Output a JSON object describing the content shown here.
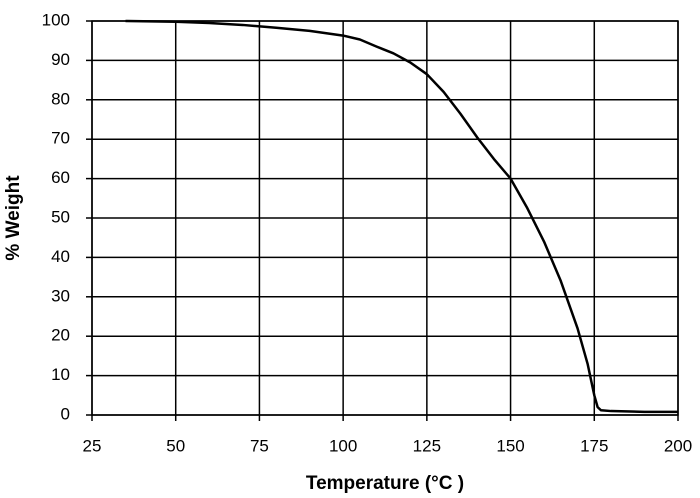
{
  "chart_data": {
    "type": "line",
    "x_label": "Temperature (°C )",
    "y_label": "% Weight",
    "x": [
      35,
      50,
      60,
      70,
      80,
      90,
      100,
      105,
      110,
      115,
      120,
      125,
      130,
      135,
      140,
      145,
      150,
      155,
      160,
      165,
      170,
      173,
      175,
      176,
      177,
      180,
      190,
      200
    ],
    "series": [
      {
        "color": "#000000",
        "values": [
          100,
          99.8,
          99.5,
          99.0,
          98.3,
          97.5,
          96.3,
          95.3,
          93.5,
          91.8,
          89.5,
          86.5,
          82,
          76.5,
          70.5,
          65,
          60,
          52.5,
          44,
          34,
          22,
          13,
          5,
          2,
          1.2,
          1,
          0.8,
          0.8
        ]
      }
    ],
    "xlim": [
      25,
      200
    ],
    "ylim": [
      0,
      100
    ],
    "xticks": [
      25,
      50,
      75,
      100,
      125,
      150,
      175,
      200
    ],
    "yticks": [
      0,
      10,
      20,
      30,
      40,
      50,
      60,
      70,
      80,
      90,
      100
    ],
    "grid": true
  }
}
